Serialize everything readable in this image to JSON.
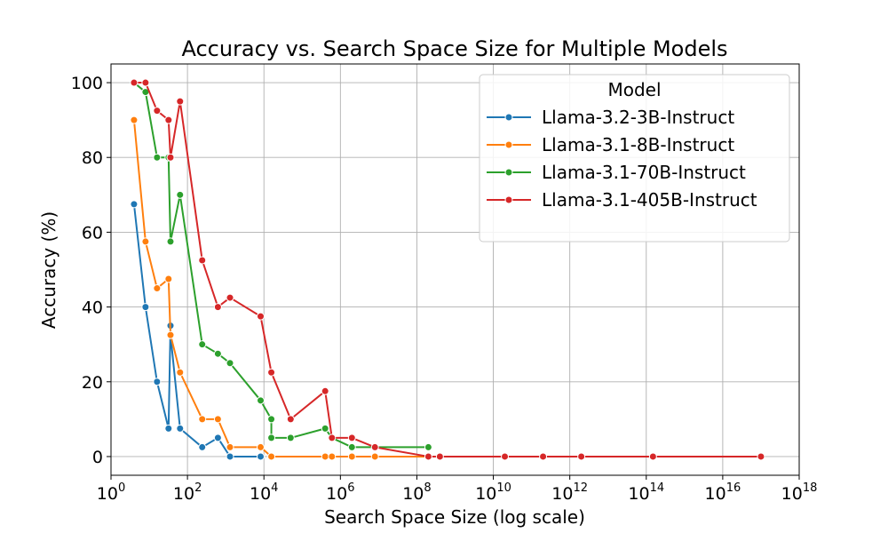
{
  "chart_data": {
    "type": "line",
    "title": "Accuracy vs. Search Space Size for Multiple Models",
    "xlabel": "Search Space Size (log scale)",
    "ylabel": "Accuracy (%)",
    "xscale": "log",
    "xlim": [
      1,
      1e+18
    ],
    "ylim": [
      -5,
      105
    ],
    "grid": true,
    "legend": {
      "title": "Model",
      "placement": "top-right"
    },
    "x_ticks": [
      {
        "value": 1,
        "base": "10",
        "exp": "0"
      },
      {
        "value": 100,
        "base": "10",
        "exp": "2"
      },
      {
        "value": 10000,
        "base": "10",
        "exp": "4"
      },
      {
        "value": 1000000,
        "base": "10",
        "exp": "6"
      },
      {
        "value": 100000000,
        "base": "10",
        "exp": "8"
      },
      {
        "value": 10000000000,
        "base": "10",
        "exp": "10"
      },
      {
        "value": 1000000000000,
        "base": "10",
        "exp": "12"
      },
      {
        "value": 100000000000000,
        "base": "10",
        "exp": "14"
      },
      {
        "value": 10000000000000000,
        "base": "10",
        "exp": "16"
      },
      {
        "value": 1000000000000000000,
        "base": "10",
        "exp": "18"
      }
    ],
    "y_ticks": [
      {
        "value": 0,
        "label": "0"
      },
      {
        "value": 20,
        "label": "20"
      },
      {
        "value": 40,
        "label": "40"
      },
      {
        "value": 60,
        "label": "60"
      },
      {
        "value": 80,
        "label": "80"
      },
      {
        "value": 100,
        "label": "100"
      }
    ],
    "series": [
      {
        "name": "Llama-3.2-3B-Instruct",
        "color": "#1f77b4",
        "points": [
          [
            4,
            67.5
          ],
          [
            8,
            40
          ],
          [
            16,
            20
          ],
          [
            32,
            7.5
          ],
          [
            36,
            35
          ],
          [
            36,
            32.5
          ],
          [
            64,
            7.5
          ],
          [
            243,
            2.5
          ],
          [
            625,
            5
          ],
          [
            1296,
            0
          ],
          [
            8192,
            0
          ]
        ]
      },
      {
        "name": "Llama-3.1-8B-Instruct",
        "color": "#ff7f0e",
        "points": [
          [
            4,
            90
          ],
          [
            8,
            57.5
          ],
          [
            16,
            45
          ],
          [
            32,
            47.5
          ],
          [
            36,
            32.5
          ],
          [
            64,
            22.5
          ],
          [
            243,
            10
          ],
          [
            625,
            10
          ],
          [
            1296,
            2.5
          ],
          [
            8192,
            2.5
          ],
          [
            15625,
            0
          ],
          [
            400000,
            0
          ],
          [
            600000,
            0
          ],
          [
            2000000,
            0
          ],
          [
            8000000,
            0
          ],
          [
            200000000,
            0
          ]
        ]
      },
      {
        "name": "Llama-3.1-70B-Instruct",
        "color": "#2ca02c",
        "points": [
          [
            4,
            100
          ],
          [
            8,
            97.5
          ],
          [
            16,
            80
          ],
          [
            32,
            80
          ],
          [
            36,
            57.5
          ],
          [
            64,
            70
          ],
          [
            243,
            30
          ],
          [
            625,
            27.5
          ],
          [
            1296,
            25
          ],
          [
            8192,
            15
          ],
          [
            15625,
            10
          ],
          [
            15625,
            5
          ],
          [
            50000,
            5
          ],
          [
            400000,
            7.5
          ],
          [
            600000,
            5
          ],
          [
            2000000,
            2.5
          ],
          [
            8000000,
            2.5
          ],
          [
            200000000,
            2.5
          ]
        ]
      },
      {
        "name": "Llama-3.1-405B-Instruct",
        "color": "#d62728",
        "points": [
          [
            4,
            100
          ],
          [
            8,
            100
          ],
          [
            16,
            92.5
          ],
          [
            32,
            90
          ],
          [
            36,
            80
          ],
          [
            64,
            95
          ],
          [
            243,
            52.5
          ],
          [
            625,
            40
          ],
          [
            1296,
            42.5
          ],
          [
            8192,
            37.5
          ],
          [
            15625,
            22.5
          ],
          [
            50000,
            10
          ],
          [
            400000,
            17.5
          ],
          [
            600000,
            5
          ],
          [
            2000000,
            5
          ],
          [
            8000000,
            2.5
          ],
          [
            200000000,
            0
          ],
          [
            400000000,
            0
          ],
          [
            20000000000,
            0
          ],
          [
            200000000000,
            0
          ],
          [
            2000000000000,
            0
          ],
          [
            150000000000000,
            0
          ],
          [
            100000000000000000,
            0
          ]
        ]
      }
    ]
  }
}
